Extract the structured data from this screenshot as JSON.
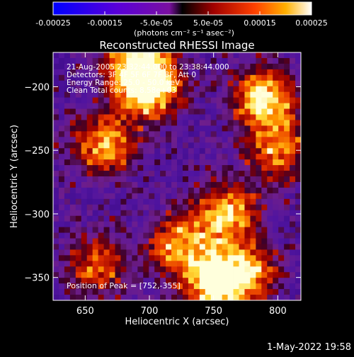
{
  "colorbar": {
    "ticks": [
      "-0.00025",
      "-0.00015",
      "-5.0e-05",
      "5.0e-05",
      "0.00015",
      "0.00025"
    ],
    "range": [
      -0.00025,
      0.00025
    ],
    "units_line": "(photons cm⁻² s⁻¹ asec⁻²)"
  },
  "chart_data": {
    "type": "heatmap",
    "title": "Reconstructed RHESSI Image",
    "xlabel": "Heliocentric X (arcsec)",
    "ylabel": "Heliocentric Y (arcsec)",
    "xlim": [
      625,
      818
    ],
    "ylim": [
      -368,
      -173
    ],
    "xticks": [
      650,
      700,
      750,
      800
    ],
    "yticks": [
      -200,
      -250,
      -300,
      -350
    ],
    "annotations": [
      "21-Aug-2005 23:32:44.000 to 23:38:44.000",
      "Detectors: 3F 4F 5F 6F 7F 8F, Att 0",
      "Energy Range: 25.0 - 50.0 keV",
      "Clean     Total counts: 8.58e+03"
    ],
    "peak_label": "Position of Peak = [752,-355]",
    "peak": [
      752,
      -355
    ],
    "bright_sources": [
      {
        "x": 700,
        "y": -200,
        "level": 0.95
      },
      {
        "x": 690,
        "y": -185,
        "level": 0.8
      },
      {
        "x": 665,
        "y": -245,
        "level": 0.7
      },
      {
        "x": 790,
        "y": -210,
        "level": 0.85
      },
      {
        "x": 800,
        "y": -250,
        "level": 0.6
      },
      {
        "x": 760,
        "y": -300,
        "level": 0.75
      },
      {
        "x": 725,
        "y": -325,
        "level": 0.7
      },
      {
        "x": 752,
        "y": -355,
        "level": 1.0
      },
      {
        "x": 775,
        "y": -345,
        "level": 0.65
      },
      {
        "x": 660,
        "y": -340,
        "level": 0.5
      }
    ]
  },
  "footer": "1-May-2022 19:58"
}
